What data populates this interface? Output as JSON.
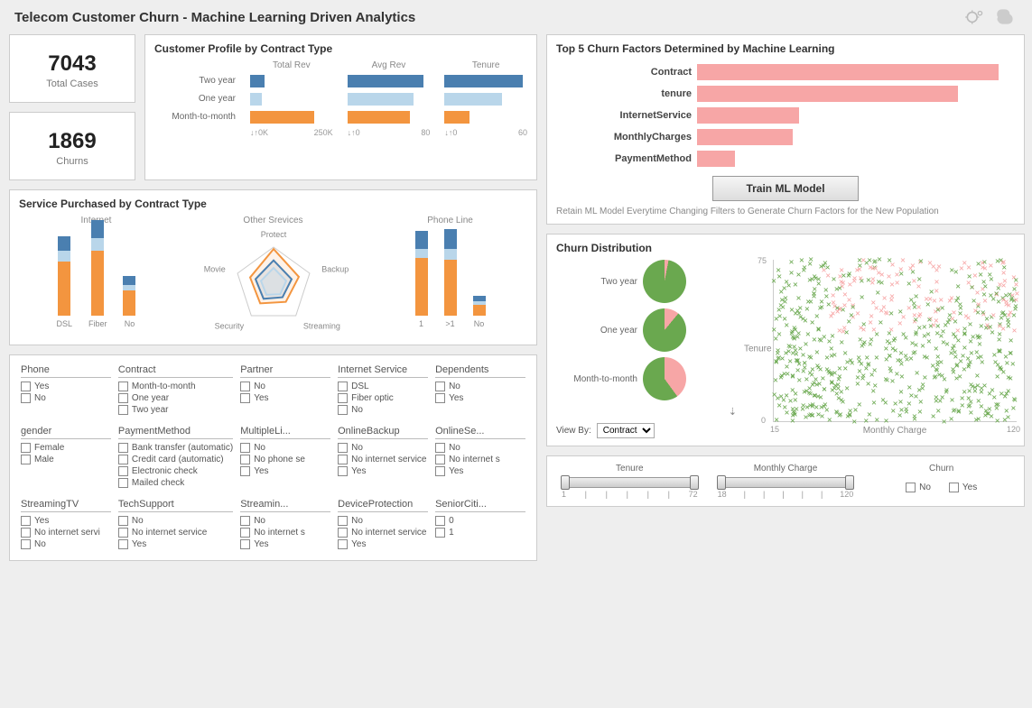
{
  "header": {
    "title": "Telecom Customer Churn - Machine Learning Driven Analytics"
  },
  "kpis": {
    "total_cases": {
      "value": "7043",
      "label": "Total Cases"
    },
    "churns": {
      "value": "1869",
      "label": "Churns"
    }
  },
  "profile": {
    "title": "Customer Profile by Contract Type",
    "columns": [
      "Total Rev",
      "Avg Rev",
      "Tenure"
    ],
    "rows": [
      "Two year",
      "One year",
      "Month-to-month"
    ],
    "colors": {
      "twoyear": "#4a7fb0",
      "oneyear": "#b9d6ea",
      "mtm": "#f3953f"
    },
    "values": {
      "Two year": {
        "TotalRev": 0.18,
        "AvgRev": 0.92,
        "Tenure": 0.95
      },
      "One year": {
        "TotalRev": 0.14,
        "AvgRev": 0.8,
        "Tenure": 0.7
      },
      "Month-to-month": {
        "TotalRev": 0.78,
        "AvgRev": 0.76,
        "Tenure": 0.3
      }
    },
    "axes": {
      "TotalRev": [
        "0K",
        "250K"
      ],
      "AvgRev": [
        "0",
        "80"
      ],
      "Tenure": [
        "0",
        "60"
      ]
    }
  },
  "service": {
    "title": "Service Purchased by Contract Type",
    "internet": {
      "title": "Internet",
      "categories": [
        "DSL",
        "Fiber",
        "No"
      ],
      "series_colors": [
        "#f3953f",
        "#b9d6ea",
        "#4a7fb0"
      ],
      "data": {
        "DSL": [
          60,
          12,
          16
        ],
        "Fiber": [
          72,
          14,
          20
        ],
        "No": [
          28,
          6,
          10
        ]
      }
    },
    "other": {
      "title": "Other Srevices",
      "axes": [
        "Protect",
        "Backup",
        "Streaming",
        "Security",
        "Movie"
      ]
    },
    "phone": {
      "title": "Phone Line",
      "categories": [
        "1",
        ">1",
        "No"
      ],
      "data": {
        "1": [
          64,
          10,
          20
        ],
        ">1": [
          62,
          12,
          22
        ],
        "No": [
          12,
          4,
          6
        ]
      }
    }
  },
  "filters": [
    {
      "label": "Phone",
      "options": [
        "Yes",
        "No"
      ]
    },
    {
      "label": "Contract",
      "options": [
        "Month-to-month",
        "One year",
        "Two year"
      ]
    },
    {
      "label": "Partner",
      "options": [
        "No",
        "Yes"
      ]
    },
    {
      "label": "Internet Service",
      "options": [
        "DSL",
        "Fiber optic",
        "No"
      ]
    },
    {
      "label": "Dependents",
      "options": [
        "No",
        "Yes"
      ]
    },
    {
      "label": "gender",
      "options": [
        "Female",
        "Male"
      ]
    },
    {
      "label": "PaymentMethod",
      "options": [
        "Bank transfer (automatic)",
        "Credit card (automatic)",
        "Electronic check",
        "Mailed check"
      ]
    },
    {
      "label": "MultipleLi...",
      "options": [
        "No",
        "No phone se",
        "Yes"
      ]
    },
    {
      "label": "OnlineBackup",
      "options": [
        "No",
        "No internet service",
        "Yes"
      ]
    },
    {
      "label": "OnlineSe...",
      "options": [
        "No",
        "No internet s",
        "Yes"
      ]
    },
    {
      "label": "StreamingTV",
      "options": [
        "Yes",
        "No internet servi",
        "No"
      ]
    },
    {
      "label": "TechSupport",
      "options": [
        "No",
        "No internet service",
        "Yes"
      ]
    },
    {
      "label": "Streamin...",
      "options": [
        "No",
        "No internet s",
        "Yes"
      ]
    },
    {
      "label": "DeviceProtection",
      "options": [
        "No",
        "No internet service",
        "Yes"
      ]
    },
    {
      "label": "SeniorCiti...",
      "options": [
        "0",
        "1"
      ]
    }
  ],
  "factors": {
    "title": "Top 5 Churn Factors Determined by Machine Learning",
    "bar_color": "#f7a6a6",
    "items": [
      {
        "label": "Contract",
        "value": 0.95
      },
      {
        "label": "tenure",
        "value": 0.82
      },
      {
        "label": "InternetService",
        "value": 0.32
      },
      {
        "label": "MonthlyCharges",
        "value": 0.3
      },
      {
        "label": "PaymentMethod",
        "value": 0.12
      }
    ],
    "button": "Train ML Model",
    "hint": "Retain ML Model Everytime Changing Filters to Generate Churn Factors for the New Population"
  },
  "churn_dist": {
    "title": "Churn Distribution",
    "pies": [
      {
        "label": "Two year",
        "churn_pct": 3,
        "colors": [
          "#6aa84f",
          "#f7a6a6"
        ]
      },
      {
        "label": "One year",
        "churn_pct": 11,
        "colors": [
          "#6aa84f",
          "#f7a6a6"
        ]
      },
      {
        "label": "Month-to-month",
        "churn_pct": 40,
        "colors": [
          "#6aa84f",
          "#f7a6a6"
        ]
      }
    ],
    "viewby_label": "View By:",
    "viewby_value": "Contract",
    "scatter": {
      "ylabel": "Tenure",
      "xlabel": "Monthly Charge",
      "yrange": [
        0,
        75
      ],
      "xrange": [
        15,
        120
      ],
      "colors": {
        "stay": "#6aa84f",
        "churn": "#f7a6a6"
      }
    }
  },
  "sliders": {
    "tenure": {
      "label": "Tenure",
      "min": "1",
      "max": "72"
    },
    "monthly": {
      "label": "Monthly Charge",
      "min": "18",
      "max": "120"
    },
    "churn": {
      "label": "Churn",
      "options": [
        "No",
        "Yes"
      ]
    }
  }
}
